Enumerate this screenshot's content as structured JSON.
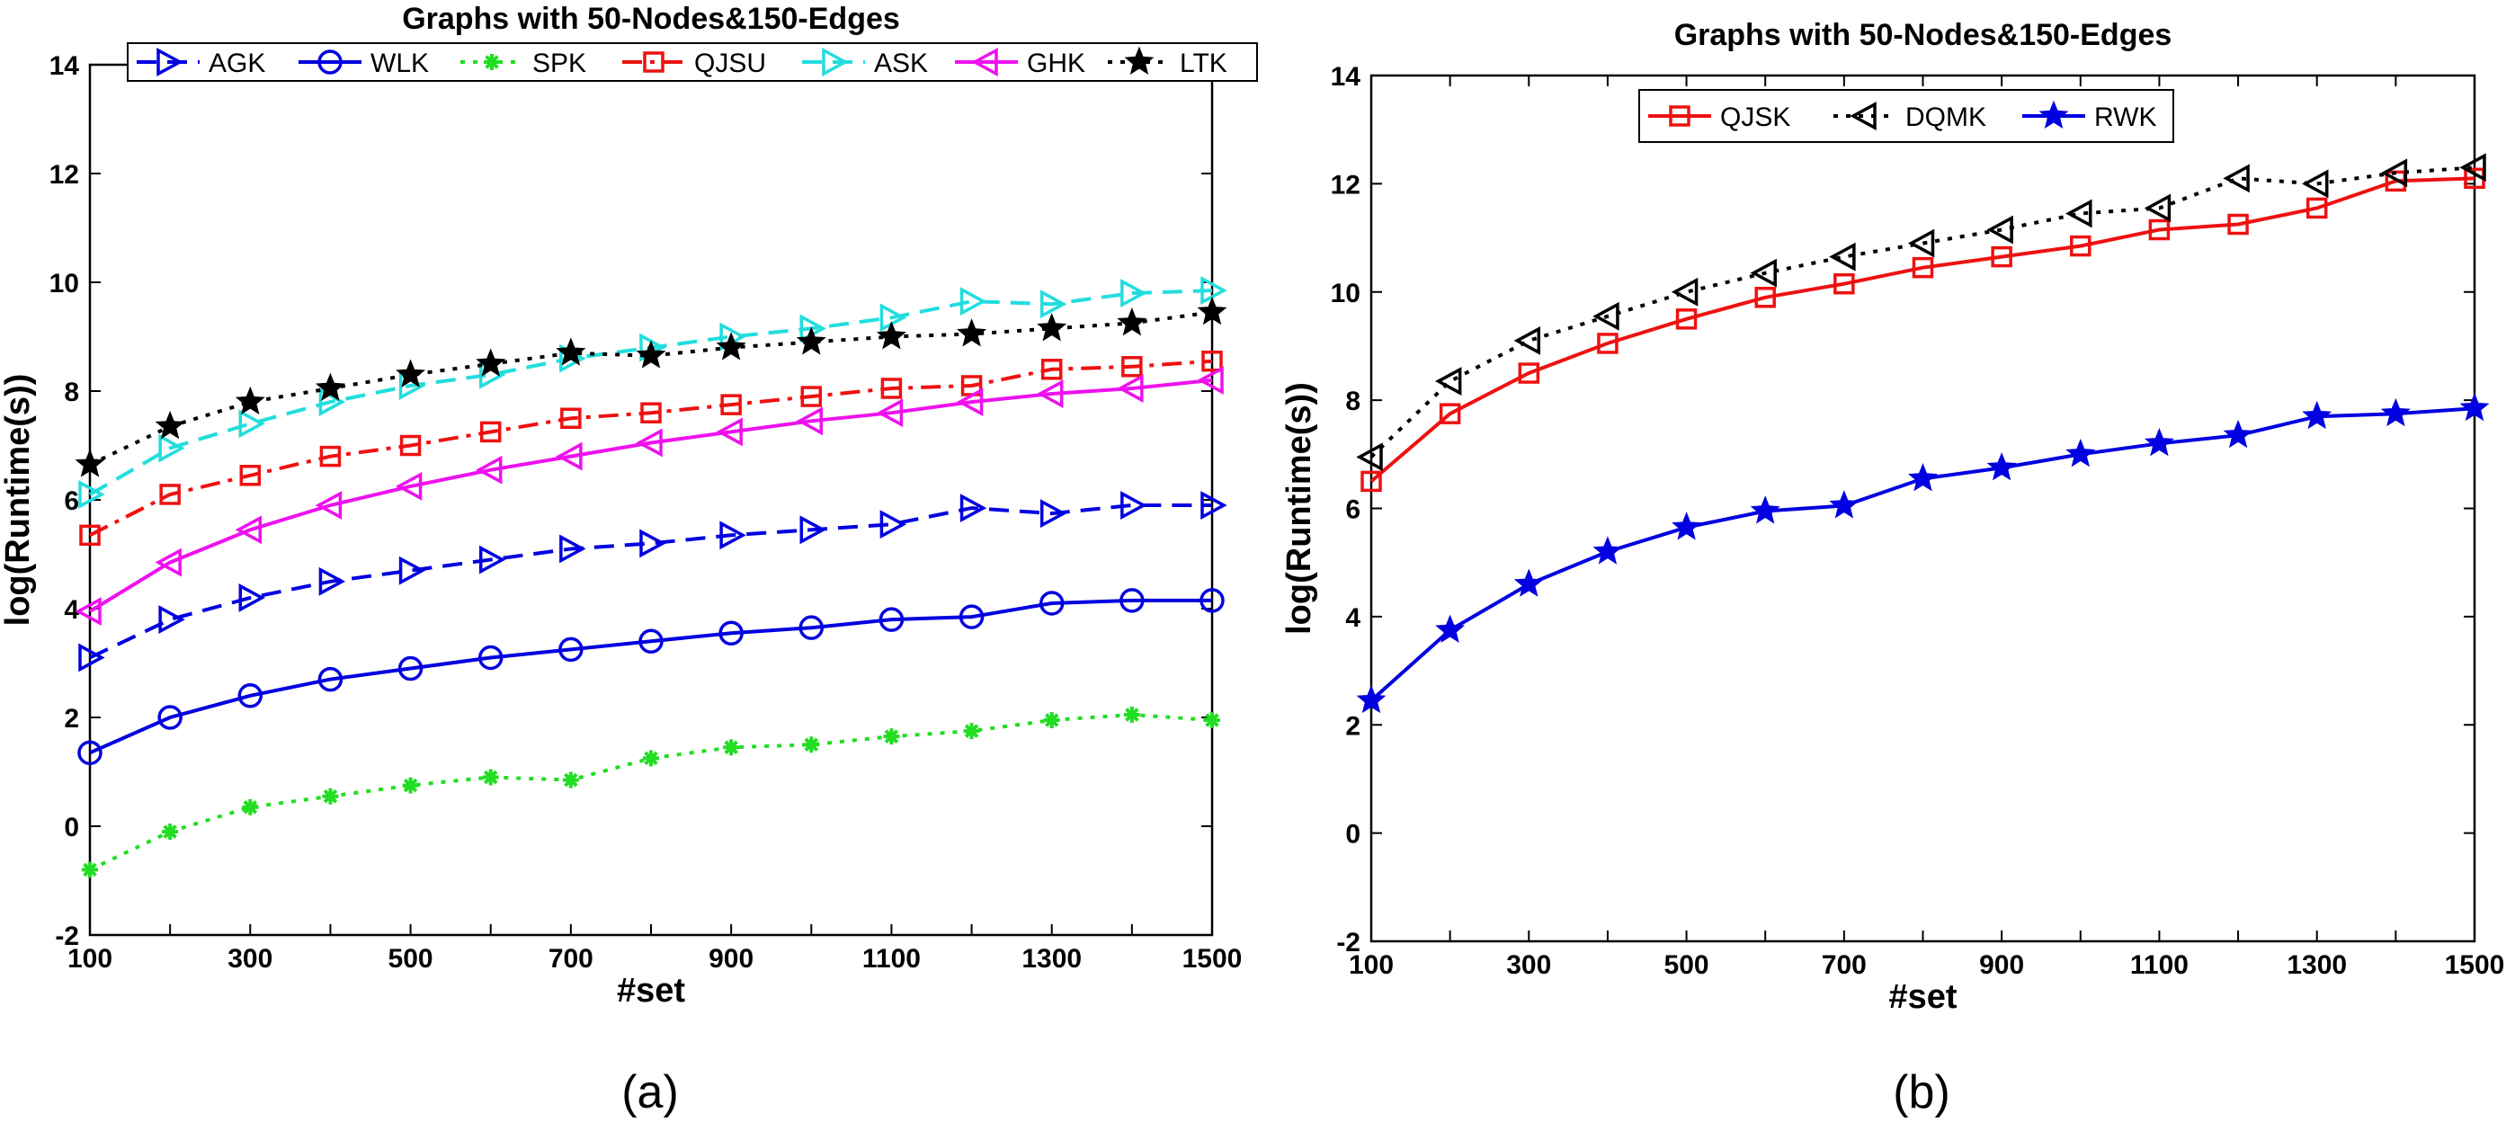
{
  "chart_data": [
    {
      "type": "line",
      "title": "Graphs with 50-Nodes&150-Edges",
      "xlabel": "#set",
      "ylabel": "log(Runtime(s))",
      "caption": "(a)",
      "xlim": [
        100,
        1500
      ],
      "ylim": [
        -2,
        14
      ],
      "xticks": [
        100,
        300,
        500,
        700,
        900,
        1100,
        1300,
        1500
      ],
      "yticks": [
        -2,
        0,
        2,
        4,
        6,
        8,
        10,
        12,
        14
      ],
      "x": [
        100,
        200,
        300,
        400,
        500,
        600,
        700,
        800,
        900,
        1000,
        1100,
        1200,
        1300,
        1400,
        1500
      ],
      "legend_position": "top",
      "series": [
        {
          "name": "AGK",
          "color": "#0000e0",
          "dash": "dashed",
          "marker": "triangle-right",
          "values": [
            3.1,
            3.8,
            4.2,
            4.5,
            4.7,
            4.9,
            5.1,
            5.2,
            5.35,
            5.45,
            5.55,
            5.85,
            5.75,
            5.9,
            5.9
          ]
        },
        {
          "name": "WLK",
          "color": "#0000e0",
          "dash": "solid",
          "marker": "circle",
          "values": [
            1.35,
            2.0,
            2.4,
            2.7,
            2.9,
            3.1,
            3.25,
            3.4,
            3.55,
            3.65,
            3.8,
            3.85,
            4.1,
            4.15,
            4.15
          ]
        },
        {
          "name": "SPK",
          "color": "#22dd22",
          "dash": "dotted",
          "marker": "asterisk",
          "values": [
            -0.8,
            -0.1,
            0.35,
            0.55,
            0.75,
            0.9,
            0.85,
            1.25,
            1.45,
            1.5,
            1.65,
            1.75,
            1.95,
            2.05,
            1.95
          ]
        },
        {
          "name": "QJSU",
          "color": "#ee1111",
          "dash": "dashdot",
          "marker": "square",
          "values": [
            5.35,
            6.1,
            6.45,
            6.8,
            7.0,
            7.25,
            7.5,
            7.6,
            7.75,
            7.9,
            8.05,
            8.1,
            8.4,
            8.45,
            8.55
          ]
        },
        {
          "name": "ASK",
          "color": "#22dddd",
          "dash": "dashed",
          "marker": "triangle-right",
          "values": [
            6.1,
            6.95,
            7.4,
            7.8,
            8.1,
            8.3,
            8.6,
            8.8,
            9.0,
            9.15,
            9.35,
            9.65,
            9.6,
            9.8,
            9.85
          ]
        },
        {
          "name": "GHK",
          "color": "#ee11ee",
          "dash": "solid",
          "marker": "triangle-left",
          "values": [
            3.95,
            4.85,
            5.45,
            5.9,
            6.25,
            6.55,
            6.8,
            7.05,
            7.25,
            7.45,
            7.6,
            7.8,
            7.95,
            8.05,
            8.2
          ]
        },
        {
          "name": "LTK",
          "color": "#000000",
          "dash": "dotted",
          "marker": "star",
          "values": [
            6.65,
            7.35,
            7.8,
            8.05,
            8.3,
            8.5,
            8.7,
            8.65,
            8.8,
            8.9,
            9.0,
            9.05,
            9.15,
            9.25,
            9.45
          ]
        }
      ]
    },
    {
      "type": "line",
      "title": "Graphs with 50-Nodes&150-Edges",
      "xlabel": "#set",
      "ylabel": "log(Runtime(s))",
      "caption": "(b)",
      "xlim": [
        100,
        1500
      ],
      "ylim": [
        -2,
        14
      ],
      "xticks": [
        100,
        300,
        500,
        700,
        900,
        1100,
        1300,
        1500
      ],
      "yticks": [
        -2,
        0,
        2,
        4,
        6,
        8,
        10,
        12,
        14
      ],
      "x": [
        100,
        200,
        300,
        400,
        500,
        600,
        700,
        800,
        900,
        1000,
        1100,
        1200,
        1300,
        1400,
        1500
      ],
      "legend_position": "top",
      "series": [
        {
          "name": "QJSK",
          "color": "#ee1111",
          "dash": "solid",
          "marker": "square",
          "values": [
            6.5,
            7.75,
            8.5,
            9.05,
            9.5,
            9.9,
            10.15,
            10.45,
            10.65,
            10.85,
            11.15,
            11.25,
            11.55,
            12.05,
            12.1
          ]
        },
        {
          "name": "DQMK",
          "color": "#000000",
          "dash": "dotted",
          "marker": "triangle-left",
          "values": [
            6.95,
            8.35,
            9.1,
            9.55,
            10.0,
            10.35,
            10.65,
            10.9,
            11.15,
            11.45,
            11.55,
            12.1,
            12.0,
            12.2,
            12.3
          ]
        },
        {
          "name": "RWK",
          "color": "#0000e0",
          "dash": "solid",
          "marker": "star",
          "values": [
            2.45,
            3.75,
            4.6,
            5.2,
            5.65,
            5.95,
            6.05,
            6.55,
            6.75,
            7.0,
            7.2,
            7.35,
            7.7,
            7.75,
            7.85
          ]
        }
      ]
    }
  ]
}
